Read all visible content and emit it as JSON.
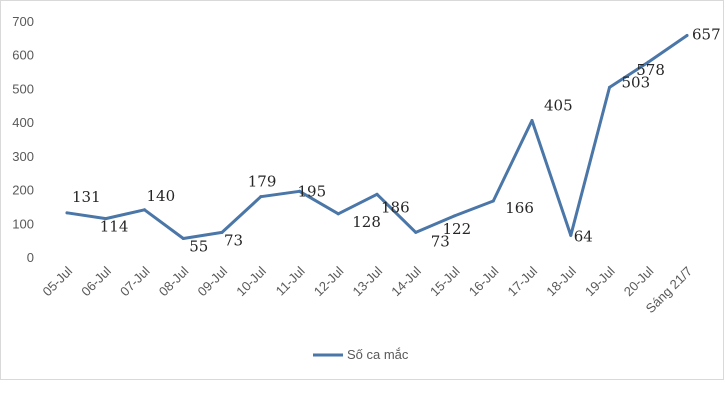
{
  "chart_data": {
    "type": "line",
    "title": "",
    "xlabel": "",
    "ylabel": "",
    "categories": [
      "05-Jul",
      "06-Jul",
      "07-Jul",
      "08-Jul",
      "09-Jul",
      "10-Jul",
      "11-Jul",
      "12-Jul",
      "13-Jul",
      "14-Jul",
      "15-Jul",
      "16-Jul",
      "17-Jul",
      "18-Jul",
      "19-Jul",
      "20-Jul",
      "Sáng 21/7"
    ],
    "series": [
      {
        "name": "Số ca mắc",
        "color": "#4a76a8",
        "values": [
          131,
          114,
          140,
          55,
          73,
          179,
          195,
          128,
          186,
          73,
          122,
          166,
          405,
          64,
          503,
          578,
          657
        ]
      }
    ],
    "ylim": [
      0,
      700
    ],
    "yticks": [
      0,
      100,
      200,
      300,
      400,
      500,
      600,
      700
    ],
    "grid": false,
    "legend": "bottom-center"
  }
}
